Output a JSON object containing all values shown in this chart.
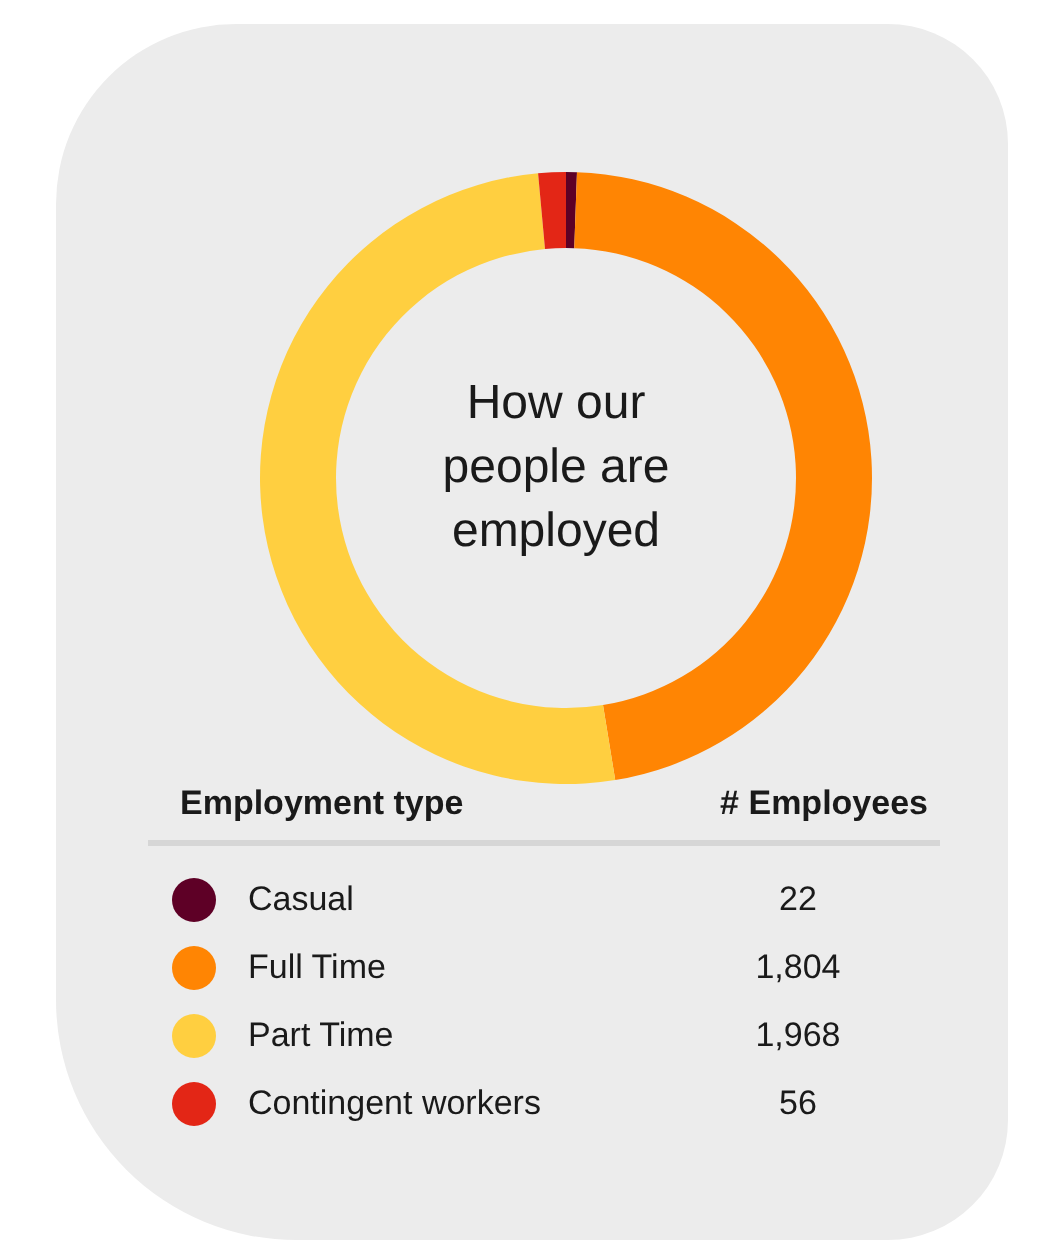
{
  "chart_data": {
    "type": "donut",
    "title": "How our people are employed",
    "legend_title": "Employment type",
    "annotations": [
      "# Employees"
    ],
    "categories": [
      "Casual",
      "Full Time",
      "Part Time",
      "Contingent workers"
    ],
    "values": [
      22,
      1804,
      1968,
      56
    ],
    "value_labels": [
      "22",
      "1,804",
      "1,968",
      "56"
    ],
    "colors": [
      "#5e0026",
      "#ff8503",
      "#ffcf40",
      "#e32616"
    ],
    "legend": "bottom"
  }
}
